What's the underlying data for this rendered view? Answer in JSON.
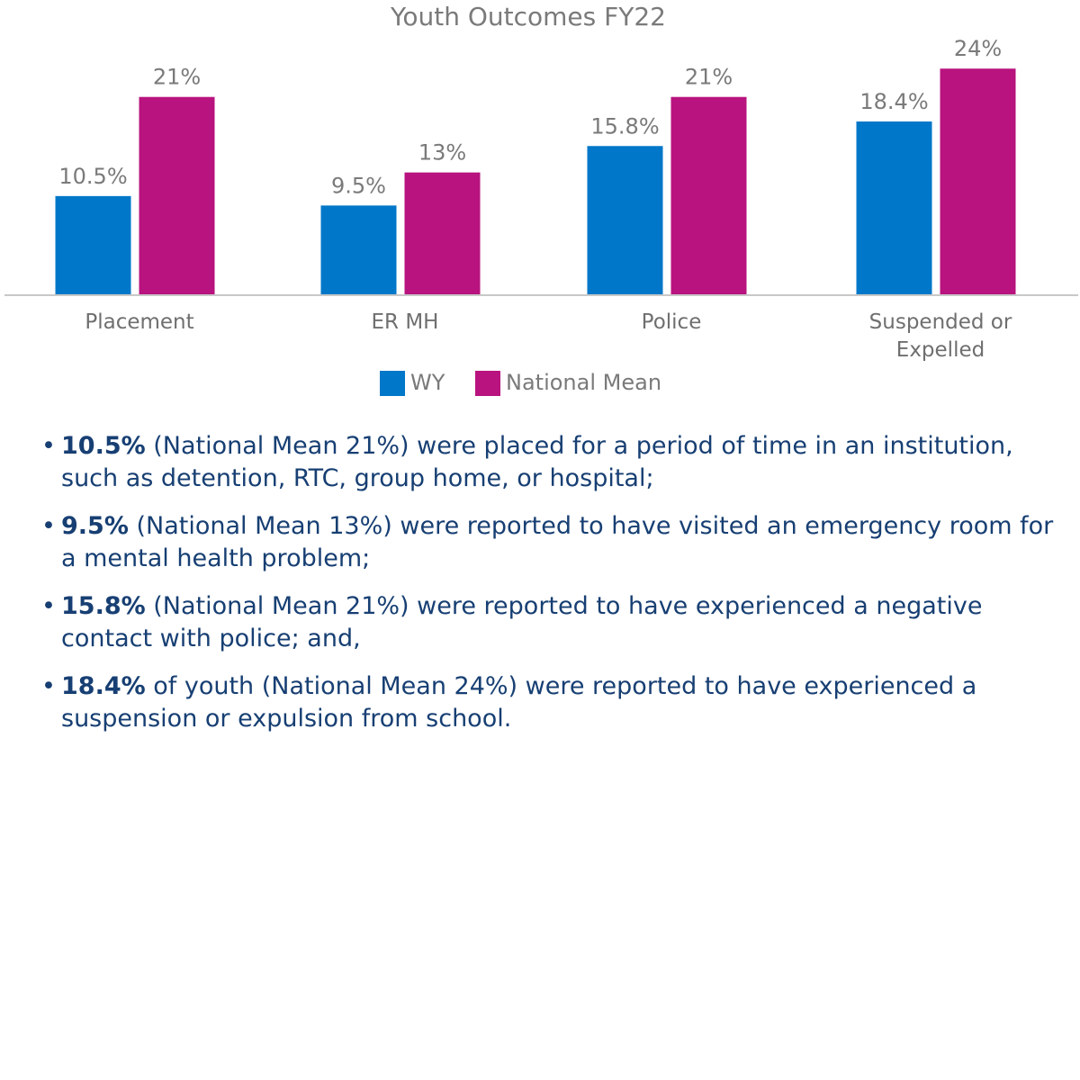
{
  "chart_data": {
    "type": "bar",
    "title": "Youth Outcomes FY22",
    "categories": [
      [
        "Placement"
      ],
      [
        "ER MH"
      ],
      [
        "Police"
      ],
      [
        "Suspended or",
        "Expelled"
      ]
    ],
    "series": [
      {
        "name": "WY",
        "color": "#0077c8",
        "values": [
          10.5,
          9.5,
          15.8,
          18.4
        ],
        "labels": [
          "10.5%",
          "9.5%",
          "15.8%",
          "18.4%"
        ]
      },
      {
        "name": "National Mean",
        "color": "#b8137e",
        "values": [
          21,
          13,
          21,
          24
        ],
        "labels": [
          "21%",
          "13%",
          "21%",
          "24%"
        ]
      }
    ],
    "ylim": [
      0,
      24.5
    ],
    "legend": "bottom",
    "grid": false
  },
  "bullets": [
    {
      "bold": "10.5%",
      "text": " (National Mean 21%) were placed for a period of time in an institution, such as detention, RTC, group home, or hospital;"
    },
    {
      "bold": "9.5%",
      "text": " (National Mean 13%) were reported to have visited an emergency room for a mental health problem;"
    },
    {
      "bold": "15.8%",
      "text": " (National Mean 21%) were reported to have experienced a negative contact with police; and,"
    },
    {
      "bold": "18.4%",
      "text": " of youth (National Mean 24%) were reported to have experienced a suspension or expulsion from school."
    }
  ],
  "bullet_glyph": "•"
}
